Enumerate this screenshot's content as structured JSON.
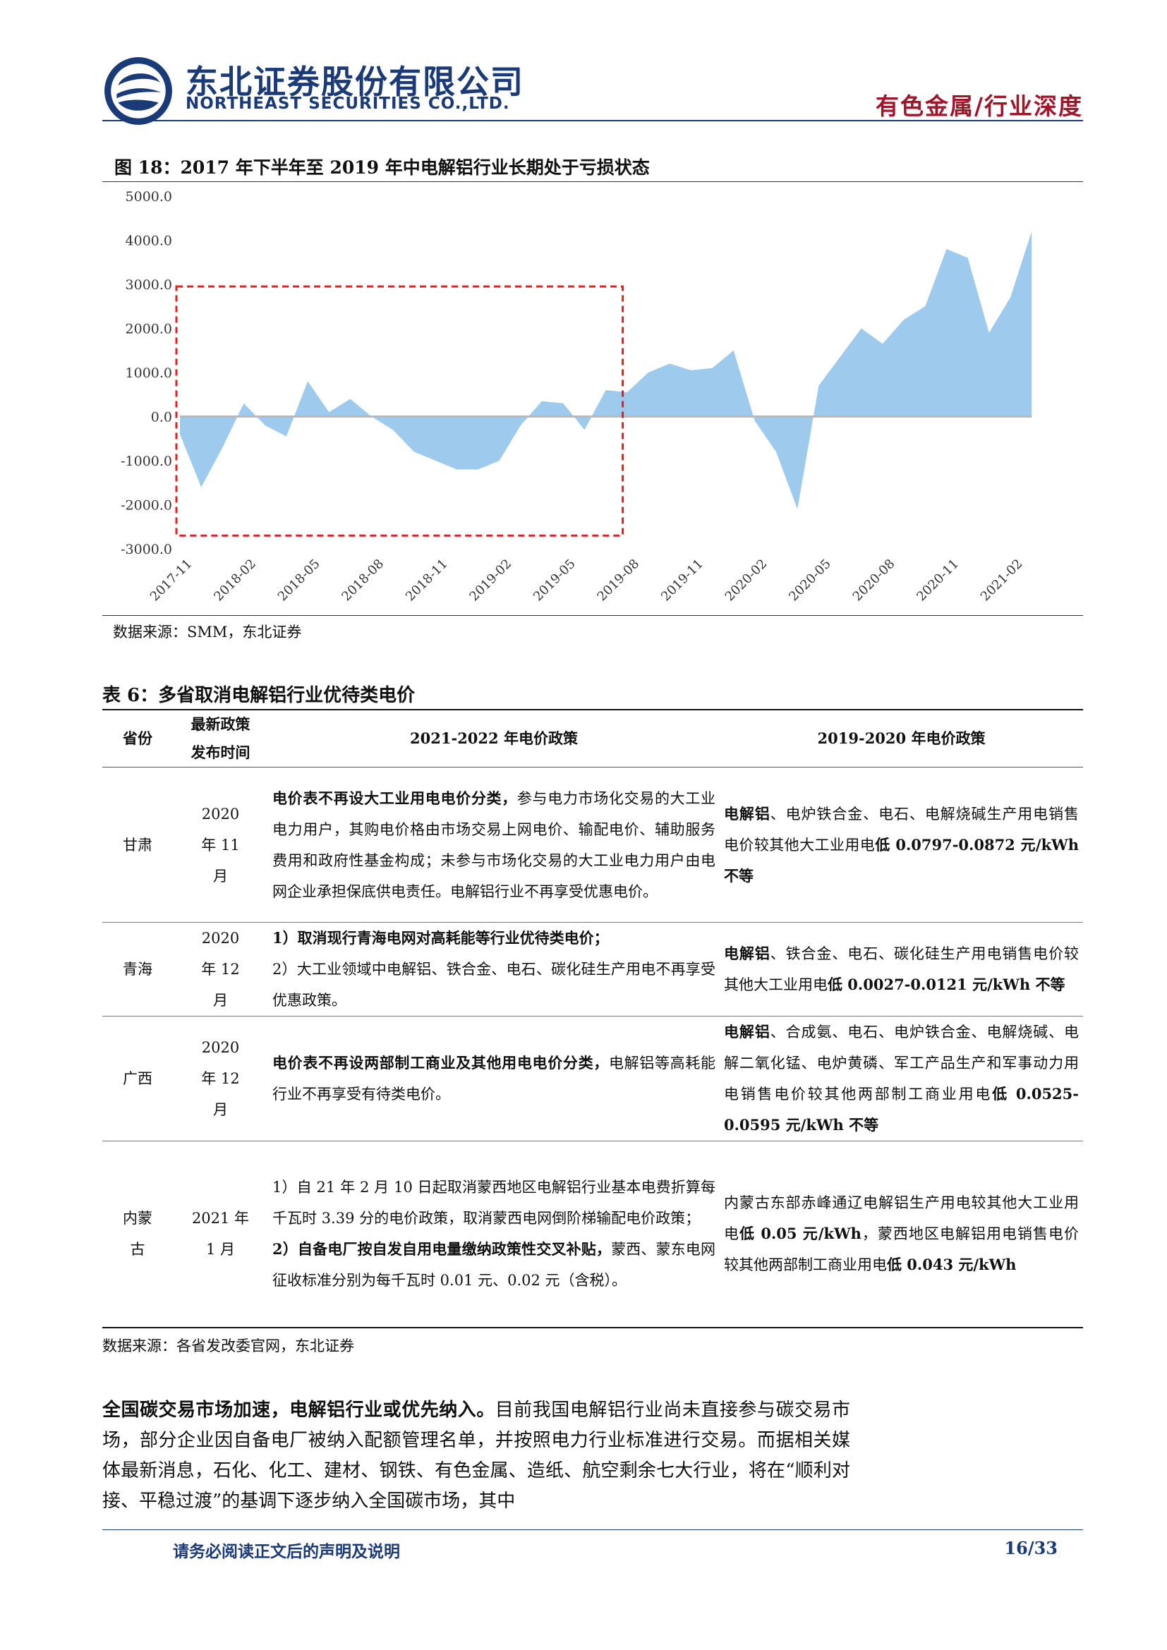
{
  "header": {
    "company_cn": "东北证券股份有限公司",
    "company_en": "NORTHEAST SECURITIES CO.,LTD.",
    "section_label": "有色金属/行业深度"
  },
  "figure": {
    "title": "图 18：2017 年下半年至 2019 年中电解铝行业长期处于亏损状态",
    "source": "数据来源：SMM，东北证券"
  },
  "chart_data": {
    "type": "area",
    "title": "",
    "xlabel": "",
    "ylabel": "",
    "ylim": [
      -3000,
      5000
    ],
    "yticks": [
      "5000.0",
      "4000.0",
      "3000.0",
      "2000.0",
      "1000.0",
      "0.0",
      "-1000.0",
      "-2000.0",
      "-3000.0"
    ],
    "ytick_values": [
      5000,
      4000,
      3000,
      2000,
      1000,
      0,
      -1000,
      -2000,
      -3000
    ],
    "xticks": [
      "2017-11",
      "2018-02",
      "2018-05",
      "2018-08",
      "2018-11",
      "2019-02",
      "2019-05",
      "2019-08",
      "2019-11",
      "2020-02",
      "2020-05",
      "2020-08",
      "2020-11",
      "2021-02"
    ],
    "series": [
      {
        "color": "#9ecaee",
        "x": [
          "2017-11",
          "2017-12",
          "2018-01",
          "2018-02",
          "2018-03",
          "2018-04",
          "2018-05",
          "2018-06",
          "2018-07",
          "2018-08",
          "2018-09",
          "2018-10",
          "2018-11",
          "2018-12",
          "2019-01",
          "2019-02",
          "2019-03",
          "2019-04",
          "2019-05",
          "2019-06",
          "2019-07",
          "2019-08",
          "2019-09",
          "2019-10",
          "2019-11",
          "2019-12",
          "2020-01",
          "2020-02",
          "2020-03",
          "2020-04",
          "2020-05",
          "2020-06",
          "2020-07",
          "2020-08",
          "2020-09",
          "2020-10",
          "2020-11",
          "2020-12",
          "2021-01",
          "2021-02",
          "2021-03"
        ],
        "values": [
          -400,
          -1600,
          -700,
          300,
          -200,
          -450,
          800,
          100,
          400,
          0,
          -300,
          -800,
          -1000,
          -1200,
          -1200,
          -1000,
          -200,
          350,
          300,
          -300,
          600,
          550,
          1000,
          1200,
          1050,
          1100,
          1500,
          -100,
          -800,
          -2100,
          700,
          1350,
          2000,
          1650,
          2200,
          2500,
          3800,
          3600,
          1900,
          2700,
          4200
        ]
      }
    ],
    "annotation": "loss period 2017-11 to 2019-07 (red dashed box)"
  },
  "table": {
    "title": "表 6：多省取消电解铝行业优待类电价",
    "headers": {
      "province": "省份",
      "date": "最新政策发布时间",
      "policy_2021": "2021-2022 年电价政策",
      "policy_2019": "2019-2020 年电价政策"
    },
    "rows": [
      {
        "province": "甘肃",
        "date": "2020 年 11 月",
        "p2021_bold": "电价表不再设大工业用电电价分类，",
        "p2021_text": "参与电力市场化交易的大工业电力用户，其购电价格由市场交易上网电价、输配电价、辅助服务费用和政府性基金构成；未参与市场化交易的大工业电力用户由电网企业承担保底供电责任。电解铝行业不再享受优惠电价。",
        "p2019_b1": "电解铝",
        "p2019_t1": "、电炉铁合金、电石、电解烧碱生产用电销售电价较其他大工业用电",
        "p2019_b2": "低 0.0797-0.0872 元/kWh 不等"
      },
      {
        "province": "青海",
        "date": "2020 年 12 月",
        "p2021_bold": "1）取消现行青海电网对高耗能等行业优待类电价；",
        "p2021_text": "2）大工业领域中电解铝、铁合金、电石、碳化硅生产用电不再享受优惠政策。",
        "p2019_b1": "电解铝",
        "p2019_t1": "、铁合金、电石、碳化硅生产用电销售电价较其他大工业用电",
        "p2019_b2": "低 0.0027-0.0121 元/kWh 不等"
      },
      {
        "province": "广西",
        "date": "2020 年 12 月",
        "p2021_bold": "电价表不再设两部制工商业及其他用电电价分类，",
        "p2021_text": "电解铝等高耗能行业不再享受有待类电价。",
        "p2019_b1": "电解铝",
        "p2019_t1": "、合成氨、电石、电炉铁合金、电解烧碱、电解二氧化锰、电炉黄磷、军工产品生产和军事动力用电销售电价较其他两部制工商业用电",
        "p2019_b2": "低 0.0525-0.0595 元/kWh 不等"
      },
      {
        "province": "内蒙古",
        "date": "2021 年 1 月",
        "p2021_text1": "1）自 21 年 2 月 10 日起取消蒙西地区电解铝行业基本电费折算每千瓦时 3.39 分的电价政策，取消蒙西电网倒阶梯输配电价政策；",
        "p2021_bold": "2）自备电厂按自发自用电量缴纳政策性交叉补贴，",
        "p2021_text": "蒙西、蒙东电网征收标准分别为每千瓦时 0.01 元、0.02 元（含税）。",
        "p2019_t1": "内蒙古东部赤峰通辽电解铝生产用电较其他大工业用电",
        "p2019_b2": "低 0.05 元/kWh",
        "p2019_t2": "，蒙西地区电解铝用电销售电价较其他两部制工商业用电",
        "p2019_b3": "低 0.043 元/kWh"
      }
    ],
    "source": "数据来源：各省发改委官网，东北证券"
  },
  "body": {
    "lead_bold": "全国碳交易市场加速，电解铝行业或优先纳入。",
    "text": "目前我国电解铝行业尚未直接参与碳交易市场，部分企业因自备电厂被纳入配额管理名单，并按照电力行业标准进行交易。而据相关媒体最新消息，石化、化工、建材、钢铁、有色金属、造纸、航空剩余七大行业，将在“顺利对接、平稳过渡”的基调下逐步纳入全国碳市场，其中"
  },
  "footer": {
    "note": "请务必阅读正文后的声明及说明",
    "page": "16/33"
  },
  "colors": {
    "brand": "#1a3a78",
    "section": "#a0152a",
    "area": "#9ecaee",
    "zero_line": "#b9b9b9",
    "box": "#e02020"
  }
}
